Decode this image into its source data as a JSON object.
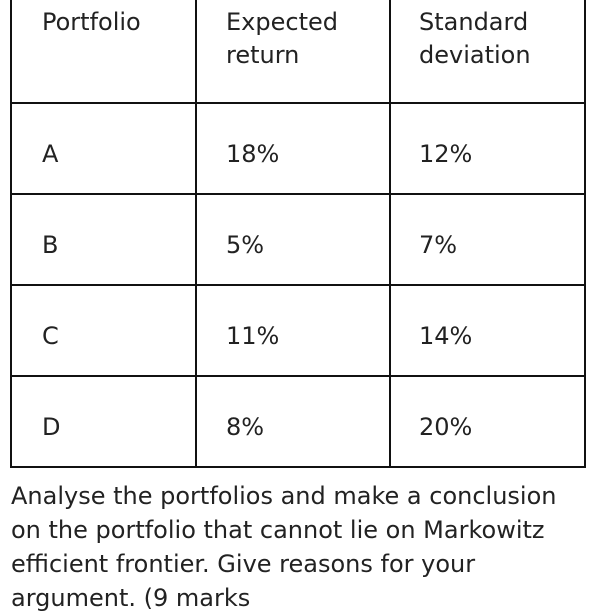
{
  "table": {
    "headers": [
      [
        "Portfolio"
      ],
      [
        "Expected",
        "return"
      ],
      [
        "Standard",
        "deviation"
      ]
    ],
    "rows": [
      {
        "portfolio": "A",
        "expected_return": "18%",
        "standard_deviation": "12%"
      },
      {
        "portfolio": "B",
        "expected_return": "5%",
        "standard_deviation": "7%"
      },
      {
        "portfolio": "C",
        "expected_return": "11%",
        "standard_deviation": "14%"
      },
      {
        "portfolio": "D",
        "expected_return": "8%",
        "standard_deviation": "20%"
      }
    ]
  },
  "question": {
    "lines": [
      "Analyse the portfolios and make a conclusion",
      "on the portfolio that cannot lie on Markowitz",
      "efficient frontier. Give reasons for your",
      "argument. (9 marks"
    ]
  }
}
